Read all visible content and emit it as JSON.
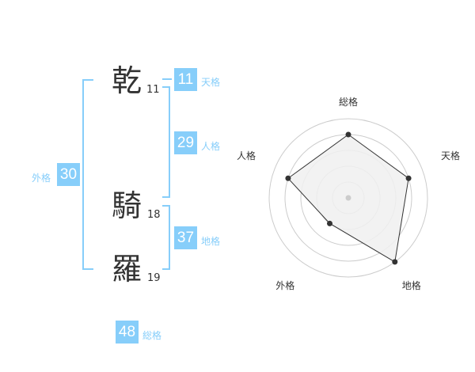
{
  "name": {
    "chars": [
      {
        "char": "乾",
        "strokes": "11"
      },
      {
        "char": "騎",
        "strokes": "18"
      },
      {
        "char": "羅",
        "strokes": "19"
      }
    ]
  },
  "kaku": {
    "tenkaku": {
      "label": "天格",
      "value": "11"
    },
    "jinkaku": {
      "label": "人格",
      "value": "29"
    },
    "chikaku": {
      "label": "地格",
      "value": "37"
    },
    "gaikaku": {
      "label": "外格",
      "value": "30"
    },
    "soukaku": {
      "label": "総格",
      "value": "48"
    }
  },
  "colors": {
    "accent": "#87cefa",
    "fill": "#f0f0f0",
    "line": "#333333"
  },
  "chart_data": {
    "type": "radar",
    "axes": [
      "総格",
      "天格",
      "地格",
      "外格",
      "人格"
    ],
    "values": [
      4,
      4,
      5,
      2,
      4
    ],
    "rlim": [
      0,
      5
    ],
    "rings": 5
  }
}
